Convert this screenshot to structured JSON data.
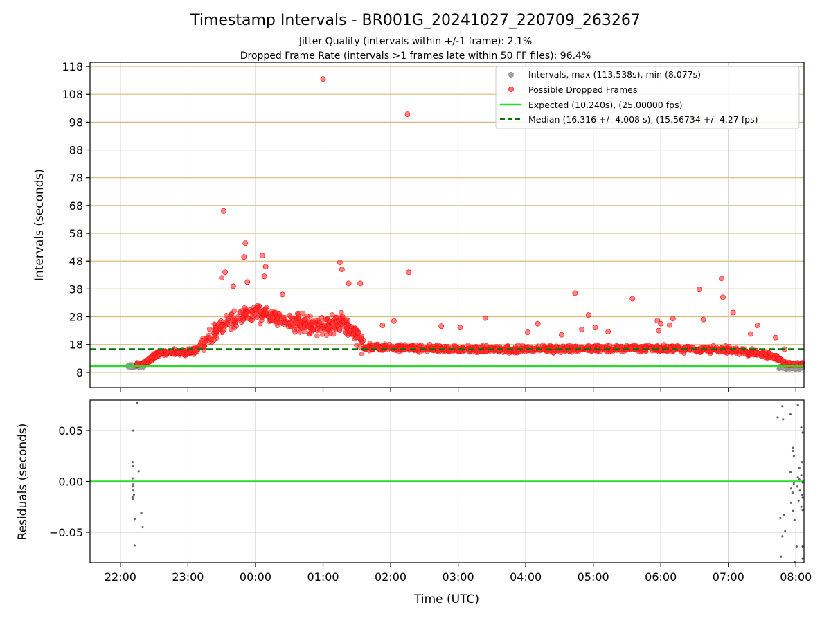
{
  "chart_data": {
    "type": "scatter",
    "title": "Timestamp Intervals - BR001G_20241027_220709_263267",
    "subtitles": [
      "Jitter Quality (intervals within +/-1 frame): 2.1%",
      "Dropped Frame Rate (intervals >1 frames late within 50 FF files): 96.4%"
    ],
    "xlabel": "Time (UTC)",
    "x_ticks": [
      "22:00",
      "23:00",
      "00:00",
      "01:00",
      "02:00",
      "03:00",
      "04:00",
      "05:00",
      "06:00",
      "07:00",
      "08:00"
    ],
    "x_range_hours": [
      21.55,
      32.12
    ],
    "legend_position": "top-right",
    "top_panel": {
      "ylabel": "Intervals (seconds)",
      "ylim": [
        2.5,
        119.5
      ],
      "y_ticks": [
        8,
        18,
        28,
        38,
        48,
        58,
        68,
        78,
        88,
        98,
        108,
        118
      ],
      "grid": true,
      "legend": [
        {
          "label": "Intervals, max (113.538s), min (8.077s)",
          "kind": "marker",
          "color": "#a0a0a0"
        },
        {
          "label": "Possible Dropped Frames",
          "kind": "marker",
          "color": "#ff4444"
        },
        {
          "label": "Expected (10.240s), (25.00000 fps)",
          "kind": "line",
          "color": "#22dd22"
        },
        {
          "label": "Median (16.316 +/- 4.008 s), (15.56734 +/- 4.27 fps)",
          "kind": "dashed",
          "color": "#007700"
        }
      ],
      "expected": 10.24,
      "median": 16.316,
      "outliers": [
        {
          "t": 23.53,
          "v": 66.0
        },
        {
          "t": 25.0,
          "v": 113.5
        },
        {
          "t": 26.25,
          "v": 100.8
        },
        {
          "t": 26.27,
          "v": 44.0
        },
        {
          "t": 23.85,
          "v": 54.5
        },
        {
          "t": 23.83,
          "v": 49.5
        },
        {
          "t": 24.1,
          "v": 50.0
        },
        {
          "t": 24.15,
          "v": 46.0
        },
        {
          "t": 24.13,
          "v": 42.5
        },
        {
          "t": 25.25,
          "v": 47.5
        },
        {
          "t": 25.28,
          "v": 45.0
        },
        {
          "t": 25.38,
          "v": 40.0
        },
        {
          "t": 23.5,
          "v": 42.0
        },
        {
          "t": 23.55,
          "v": 44.0
        },
        {
          "t": 23.88,
          "v": 40.5
        },
        {
          "t": 23.67,
          "v": 39.0
        },
        {
          "t": 24.4,
          "v": 36.0
        },
        {
          "t": 25.55,
          "v": 40.0
        },
        {
          "t": 29.58,
          "v": 34.5
        },
        {
          "t": 28.73,
          "v": 36.5
        },
        {
          "t": 28.93,
          "v": 28.6
        },
        {
          "t": 30.57,
          "v": 37.8
        },
        {
          "t": 30.9,
          "v": 41.8
        },
        {
          "t": 31.07,
          "v": 29.5
        },
        {
          "t": 30.92,
          "v": 35.0
        },
        {
          "t": 30.63,
          "v": 27.0
        },
        {
          "t": 29.95,
          "v": 26.6
        },
        {
          "t": 30.18,
          "v": 27.3
        },
        {
          "t": 30.0,
          "v": 25.5
        },
        {
          "t": 30.13,
          "v": 25.0
        },
        {
          "t": 27.4,
          "v": 27.5
        },
        {
          "t": 27.03,
          "v": 24.1
        },
        {
          "t": 26.75,
          "v": 24.6
        },
        {
          "t": 26.05,
          "v": 26.5
        },
        {
          "t": 25.88,
          "v": 24.9
        },
        {
          "t": 28.18,
          "v": 25.5
        },
        {
          "t": 28.83,
          "v": 23.5
        },
        {
          "t": 28.53,
          "v": 21.5
        },
        {
          "t": 28.03,
          "v": 22.4
        },
        {
          "t": 29.03,
          "v": 24.1
        },
        {
          "t": 29.97,
          "v": 23.0
        },
        {
          "t": 29.22,
          "v": 22.6
        },
        {
          "t": 31.43,
          "v": 24.9
        },
        {
          "t": 31.33,
          "v": 21.8
        },
        {
          "t": 31.7,
          "v": 20.5
        },
        {
          "t": 31.83,
          "v": 16.3
        }
      ]
    },
    "bottom_panel": {
      "ylabel": "Residuals (seconds)",
      "ylim": [
        -0.08,
        0.08
      ],
      "y_ticks": [
        "0.05",
        "0.00",
        "−0.05"
      ],
      "y_tick_values": [
        0.05,
        0.0,
        -0.05
      ],
      "zero_line_color": "#22dd22",
      "points": [
        {
          "t": 22.18,
          "v": 0.019
        },
        {
          "t": 22.19,
          "v": 0.05
        },
        {
          "t": 22.18,
          "v": 0.015
        },
        {
          "t": 22.18,
          "v": 0.003
        },
        {
          "t": 22.19,
          "v": -0.003
        },
        {
          "t": 22.18,
          "v": -0.005
        },
        {
          "t": 22.19,
          "v": -0.009
        },
        {
          "t": 22.18,
          "v": -0.015
        },
        {
          "t": 22.2,
          "v": -0.013
        },
        {
          "t": 22.19,
          "v": -0.017
        },
        {
          "t": 22.21,
          "v": -0.037
        },
        {
          "t": 22.21,
          "v": -0.063
        },
        {
          "t": 22.25,
          "v": 0.077
        },
        {
          "t": 22.27,
          "v": 0.01
        },
        {
          "t": 22.31,
          "v": -0.031
        },
        {
          "t": 22.33,
          "v": -0.045
        },
        {
          "t": 31.73,
          "v": 0.063
        },
        {
          "t": 31.8,
          "v": 0.074
        },
        {
          "t": 31.81,
          "v": 0.061
        },
        {
          "t": 31.92,
          "v": 0.066
        },
        {
          "t": 32.03,
          "v": 0.075
        },
        {
          "t": 32.08,
          "v": 0.053
        },
        {
          "t": 32.11,
          "v": 0.048
        },
        {
          "t": 31.95,
          "v": 0.033
        },
        {
          "t": 31.96,
          "v": 0.03
        },
        {
          "t": 31.97,
          "v": 0.025
        },
        {
          "t": 32.05,
          "v": 0.013
        },
        {
          "t": 32.09,
          "v": 0.019
        },
        {
          "t": 31.92,
          "v": 0.009
        },
        {
          "t": 32.03,
          "v": 0.004
        },
        {
          "t": 32.05,
          "v": 0.002
        },
        {
          "t": 32.08,
          "v": 0.006
        },
        {
          "t": 32.1,
          "v": -0.001
        },
        {
          "t": 31.97,
          "v": -0.002
        },
        {
          "t": 32.02,
          "v": -0.005
        },
        {
          "t": 31.93,
          "v": -0.007
        },
        {
          "t": 31.95,
          "v": -0.011
        },
        {
          "t": 32.06,
          "v": -0.009
        },
        {
          "t": 32.09,
          "v": -0.013
        },
        {
          "t": 32.1,
          "v": -0.016
        },
        {
          "t": 32.04,
          "v": -0.019
        },
        {
          "t": 31.93,
          "v": -0.021
        },
        {
          "t": 31.96,
          "v": -0.029
        },
        {
          "t": 32.08,
          "v": -0.025
        },
        {
          "t": 32.1,
          "v": -0.028
        },
        {
          "t": 31.77,
          "v": -0.036
        },
        {
          "t": 31.82,
          "v": -0.033
        },
        {
          "t": 31.98,
          "v": -0.038
        },
        {
          "t": 31.84,
          "v": -0.049
        },
        {
          "t": 31.8,
          "v": -0.054
        },
        {
          "t": 32.01,
          "v": -0.064
        },
        {
          "t": 32.11,
          "v": -0.064
        },
        {
          "t": 31.78,
          "v": -0.074
        },
        {
          "t": 31.98,
          "v": -0.08
        },
        {
          "t": 32.1,
          "v": -0.076
        }
      ]
    }
  }
}
